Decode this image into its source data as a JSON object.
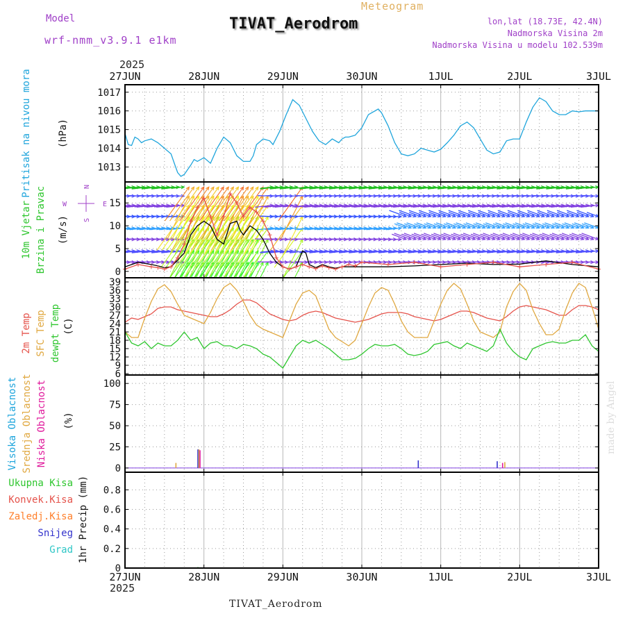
{
  "header": {
    "model_label": "Model",
    "model_name": "wrf-nmm_v3.9.1 e1km",
    "product": "Meteogram",
    "station": "TIVAT_Aerodrom",
    "coords": "lon,lat (18.73E, 42.4N)",
    "elevation": "Nadmorska Visina 2m",
    "model_elevation": "Nadmorska Visina u modelu 102.539m",
    "footer_station": "TIVAT_Aerodrom",
    "credit": "made by Angel"
  },
  "colors": {
    "pressure": "#1fa5dc",
    "temp2m": "#e5534b",
    "sfc_temp": "#e0a840",
    "dewpoint": "#2ec62e",
    "wind_speed": "#000000",
    "wind_gust": "#e5534b",
    "high_cloud": "#1fa5dc",
    "mid_cloud": "#e0a840",
    "low_cloud": "#e01a9c",
    "precip_total": "#2ec62e",
    "precip_conv": "#e5534b",
    "precip_frz": "#ff7f2a",
    "precip_snow": "#3333cc",
    "precip_hail": "#2ec6c6",
    "axis_label_purple": "#a040c8"
  },
  "time_axis": {
    "year": "2025",
    "ticks": [
      "27JUN",
      "28JUN",
      "29JUN",
      "30JUN",
      "1JUL",
      "2JUL",
      "3JUL"
    ]
  },
  "compass": {
    "north": "N",
    "south": "S",
    "west": "W",
    "east": "E"
  },
  "chart_data": [
    {
      "type": "line",
      "panel": "pressure",
      "ylabel": "Pritisak na nivou mora",
      "unit": "(hPa)",
      "yticks": [
        1013,
        1014,
        1015,
        1016,
        1017
      ],
      "ylim": [
        1012.2,
        1017.4
      ],
      "xlim_hours": [
        0,
        144
      ],
      "grid": true,
      "series": [
        {
          "x": [
            0,
            1,
            2,
            3,
            4,
            5,
            6,
            8,
            10,
            12,
            14,
            15,
            16,
            17,
            18,
            20,
            21,
            22,
            24,
            26,
            27,
            28,
            30,
            32,
            34,
            36,
            38,
            39,
            40,
            42,
            44,
            45,
            47,
            49,
            51,
            53,
            55,
            57,
            59,
            61,
            63,
            65,
            66,
            67,
            68,
            70,
            72,
            74,
            77,
            78,
            80,
            82,
            84,
            86,
            88,
            90,
            92,
            94,
            96,
            98,
            100,
            102,
            104,
            106,
            108,
            110,
            112,
            114,
            116,
            118,
            120,
            122,
            124,
            126,
            128,
            130,
            132,
            134,
            136,
            138,
            140,
            142,
            144
          ],
          "values": [
            1014.8,
            1014.2,
            1014.15,
            1014.6,
            1014.5,
            1014.3,
            1014.4,
            1014.5,
            1014.3,
            1014.0,
            1013.7,
            1013.2,
            1012.7,
            1012.5,
            1012.6,
            1013.1,
            1013.4,
            1013.3,
            1013.5,
            1013.2,
            1013.6,
            1014.0,
            1014.6,
            1014.3,
            1013.6,
            1013.3,
            1013.3,
            1013.6,
            1014.2,
            1014.5,
            1014.4,
            1014.2,
            1014.9,
            1015.8,
            1016.6,
            1016.3,
            1015.6,
            1014.9,
            1014.4,
            1014.2,
            1014.5,
            1014.3,
            1014.5,
            1014.6,
            1014.6,
            1014.7,
            1015.1,
            1015.8,
            1016.1,
            1015.9,
            1015.2,
            1014.3,
            1013.7,
            1013.6,
            1013.7,
            1014.0,
            1013.9,
            1013.8,
            1013.95,
            1014.3,
            1014.7,
            1015.2,
            1015.4,
            1015.1,
            1014.5,
            1013.9,
            1013.7,
            1013.8,
            1014.4,
            1014.5,
            1014.5,
            1015.4,
            1016.2,
            1016.7,
            1016.5,
            1016.0,
            1015.8,
            1015.8,
            1016.0,
            1015.95,
            1016.0,
            1016.0,
            1016.0
          ],
          "color": "#1fa5dc"
        }
      ]
    },
    {
      "type": "line",
      "panel": "wind",
      "ylabel": "10m Vjetar Brzina i Pravac",
      "unit": "(m/s)",
      "yticks": [
        0,
        5,
        10,
        15
      ],
      "ylim": [
        -1.4,
        19.6
      ],
      "xlim_hours": [
        0,
        144
      ],
      "grid": true,
      "barb_levels_ms": [
        18.5,
        16.5,
        14.5,
        12.0,
        9.5,
        7.0,
        4.5,
        2.0
      ],
      "series": [
        {
          "name": "speed",
          "x": [
            0,
            4,
            8,
            10,
            12,
            14,
            16,
            18,
            20,
            22,
            24,
            26,
            28,
            30,
            32,
            34,
            35,
            36,
            38,
            40,
            42,
            44,
            46,
            48,
            50,
            52,
            54,
            55,
            56,
            58,
            60,
            62,
            64,
            66,
            68,
            70,
            72,
            80,
            88,
            96,
            104,
            112,
            120,
            128,
            136,
            144
          ],
          "values": [
            1.0,
            2.0,
            1.5,
            1.2,
            0.8,
            1.0,
            2.5,
            4.0,
            8.0,
            10.0,
            11.0,
            10.0,
            7.0,
            6.0,
            10.5,
            11.0,
            9.0,
            8.0,
            10.0,
            9.0,
            7.0,
            4.0,
            2.0,
            1.0,
            0.5,
            1.0,
            4.5,
            4.0,
            1.5,
            0.8,
            1.5,
            1.0,
            0.7,
            1.0,
            1.0,
            1.0,
            1.0,
            1.0,
            1.2,
            1.5,
            1.8,
            1.5,
            1.6,
            2.3,
            1.5,
            1.0
          ],
          "color": "#000000"
        },
        {
          "name": "gust",
          "x": [
            0,
            4,
            8,
            10,
            12,
            14,
            16,
            18,
            20,
            22,
            24,
            26,
            28,
            30,
            32,
            34,
            36,
            38,
            40,
            42,
            44,
            46,
            48,
            50,
            52,
            54,
            56,
            58,
            60,
            62,
            64,
            66,
            68,
            70,
            72,
            80,
            88,
            96,
            104,
            112,
            120,
            128,
            136,
            144
          ],
          "values": [
            0.5,
            1.5,
            1.0,
            0.8,
            0.5,
            1.0,
            3.0,
            6.0,
            11.0,
            14.0,
            16.0,
            12.0,
            8.0,
            12.0,
            17.0,
            15.0,
            12.0,
            14.0,
            13.0,
            11.0,
            8.0,
            3.0,
            1.0,
            0.5,
            1.0,
            1.5,
            1.0,
            0.6,
            1.2,
            0.8,
            0.5,
            1.0,
            1.5,
            1.2,
            2.0,
            1.5,
            2.0,
            1.0,
            1.5,
            2.0,
            1.0,
            1.5,
            2.0,
            0.5
          ],
          "color": "#e5534b"
        }
      ]
    },
    {
      "type": "line",
      "panel": "temperature",
      "ylabels": [
        "2m Temp",
        "SFC Temp",
        "dewpt Temp"
      ],
      "unit": "(C)",
      "yticks": [
        6,
        9,
        12,
        15,
        18,
        21,
        24,
        27,
        30,
        33,
        36,
        39
      ],
      "ylim": [
        5.5,
        40.5
      ],
      "xlim_hours": [
        0,
        144
      ],
      "grid": true,
      "series": [
        {
          "name": "2m Temp",
          "x": [
            0,
            2,
            4,
            6,
            8,
            10,
            12,
            14,
            16,
            18,
            20,
            22,
            24,
            26,
            28,
            30,
            32,
            34,
            36,
            38,
            40,
            42,
            44,
            46,
            48,
            50,
            52,
            54,
            56,
            58,
            60,
            62,
            64,
            66,
            68,
            70,
            72,
            74,
            76,
            78,
            80,
            82,
            84,
            86,
            88,
            90,
            92,
            94,
            96,
            98,
            100,
            102,
            104,
            106,
            108,
            110,
            112,
            114,
            116,
            118,
            120,
            122,
            124,
            126,
            128,
            130,
            132,
            134,
            136,
            138,
            140,
            142,
            144
          ],
          "values": [
            24.5,
            26.0,
            25.5,
            26.5,
            27.5,
            29.5,
            30.0,
            30.0,
            29.0,
            28.5,
            28.0,
            27.5,
            27.0,
            26.5,
            26.5,
            27.5,
            29.0,
            31.0,
            32.5,
            32.5,
            31.5,
            29.5,
            27.5,
            26.5,
            25.5,
            25.0,
            25.5,
            27.0,
            28.0,
            28.5,
            28.0,
            27.0,
            26.0,
            25.5,
            25.0,
            24.5,
            25.0,
            25.5,
            26.5,
            27.5,
            28.0,
            28.0,
            28.0,
            27.5,
            26.5,
            26.0,
            25.5,
            25.0,
            25.5,
            26.5,
            27.5,
            28.5,
            28.5,
            28.0,
            27.0,
            26.0,
            25.5,
            25.0,
            26.5,
            28.5,
            30.0,
            30.5,
            30.0,
            29.5,
            29.0,
            28.0,
            27.0,
            27.0,
            29.0,
            30.5,
            30.5,
            30.0,
            29.0
          ],
          "color": "#e5534b"
        },
        {
          "name": "SFC Temp",
          "x": [
            0,
            2,
            4,
            6,
            8,
            10,
            12,
            14,
            16,
            18,
            20,
            22,
            24,
            26,
            28,
            30,
            32,
            34,
            36,
            38,
            40,
            42,
            44,
            46,
            48,
            50,
            52,
            54,
            56,
            58,
            60,
            62,
            64,
            66,
            68,
            70,
            72,
            74,
            76,
            78,
            80,
            82,
            84,
            86,
            88,
            90,
            92,
            94,
            96,
            98,
            100,
            102,
            104,
            106,
            108,
            110,
            112,
            114,
            116,
            118,
            120,
            122,
            124,
            126,
            128,
            130,
            132,
            134,
            136,
            138,
            140,
            142,
            144
          ],
          "values": [
            21.0,
            19.0,
            19.0,
            26.0,
            32.0,
            36.5,
            38.0,
            35.5,
            31.0,
            27.0,
            26.0,
            25.0,
            24.0,
            28.0,
            33.0,
            37.0,
            38.5,
            36.0,
            32.0,
            27.0,
            23.5,
            22.0,
            21.0,
            20.0,
            19.0,
            25.0,
            31.0,
            35.0,
            36.0,
            34.0,
            28.0,
            22.0,
            19.0,
            17.5,
            16.0,
            18.0,
            24.0,
            30.0,
            35.0,
            37.0,
            36.0,
            31.0,
            25.0,
            21.0,
            19.0,
            19.0,
            19.0,
            25.0,
            31.0,
            36.0,
            38.5,
            36.5,
            31.0,
            25.0,
            21.0,
            20.0,
            19.0,
            21.0,
            30.0,
            35.5,
            38.5,
            36.0,
            29.0,
            24.0,
            20.0,
            20.0,
            22.0,
            29.0,
            35.0,
            38.5,
            37.0,
            30.0,
            22.0
          ],
          "color": "#e0a840"
        },
        {
          "name": "dewpt Temp",
          "x": [
            0,
            2,
            4,
            6,
            8,
            10,
            12,
            14,
            16,
            18,
            20,
            22,
            24,
            26,
            28,
            30,
            32,
            34,
            36,
            38,
            40,
            42,
            44,
            46,
            48,
            50,
            52,
            54,
            56,
            58,
            60,
            62,
            64,
            66,
            68,
            70,
            72,
            74,
            76,
            78,
            80,
            82,
            84,
            86,
            88,
            90,
            92,
            94,
            96,
            98,
            100,
            102,
            104,
            106,
            108,
            110,
            112,
            114,
            116,
            118,
            120,
            122,
            124,
            126,
            128,
            130,
            132,
            134,
            136,
            138,
            140,
            142,
            144
          ],
          "values": [
            21.0,
            17.0,
            16.0,
            17.5,
            15.0,
            17.0,
            16.0,
            16.0,
            18.0,
            21.0,
            18.0,
            19.0,
            15.0,
            17.0,
            17.5,
            16.0,
            16.0,
            15.0,
            16.5,
            16.0,
            15.0,
            13.0,
            12.0,
            10.0,
            8.0,
            12.0,
            16.0,
            18.0,
            17.0,
            18.0,
            16.5,
            15.0,
            13.0,
            11.0,
            11.0,
            11.5,
            13.0,
            15.0,
            16.5,
            16.0,
            16.0,
            16.5,
            15.0,
            13.0,
            12.5,
            13.0,
            14.0,
            16.5,
            17.0,
            17.5,
            16.0,
            15.0,
            17.0,
            16.0,
            15.0,
            14.0,
            16.0,
            22.0,
            17.0,
            14.0,
            12.0,
            11.0,
            15.0,
            16.0,
            17.0,
            17.5,
            17.0,
            17.0,
            18.0,
            18.0,
            20.0,
            16.0,
            14.0
          ],
          "color": "#2ec62e"
        }
      ]
    },
    {
      "type": "bar",
      "panel": "cloud",
      "ylabels": [
        "Visoka Oblacnost",
        "Srednja Oblacnost",
        "Niska Oblacnost"
      ],
      "unit": "(%)",
      "yticks": [
        0,
        25,
        50,
        75,
        100
      ],
      "ylim": [
        -5,
        110
      ],
      "xlim_hours": [
        0,
        144
      ],
      "grid": true,
      "series": [
        {
          "name": "Visoka Oblacnost",
          "x": [
            22,
            89,
            113
          ],
          "values": [
            22,
            9,
            8
          ],
          "color": "#3333cc"
        },
        {
          "name": "Srednja Oblacnost",
          "x": [
            15,
            22,
            115
          ],
          "values": [
            6,
            22,
            7
          ],
          "color": "#e0a840"
        },
        {
          "name": "Niska Oblacnost",
          "x": [
            22,
            114
          ],
          "values": [
            21,
            6
          ],
          "color": "#e01a9c"
        }
      ]
    },
    {
      "type": "bar",
      "panel": "precip",
      "ylabels": [
        "Ukupna Kisa",
        "Konvek.Kisa",
        "Zaledj.Kisa",
        "Snijeg",
        "Grad"
      ],
      "ylabel": "1hr Precip (mm)",
      "yticks": [
        0,
        0.2,
        0.4,
        0.6,
        0.8
      ],
      "ylim": [
        0,
        0.98
      ],
      "xlim_hours": [
        0,
        144
      ],
      "grid": true,
      "series": [
        {
          "name": "Ukupna Kisa",
          "x": [
            22
          ],
          "values": [
            0.01
          ],
          "color": "#2ec62e"
        }
      ]
    }
  ]
}
